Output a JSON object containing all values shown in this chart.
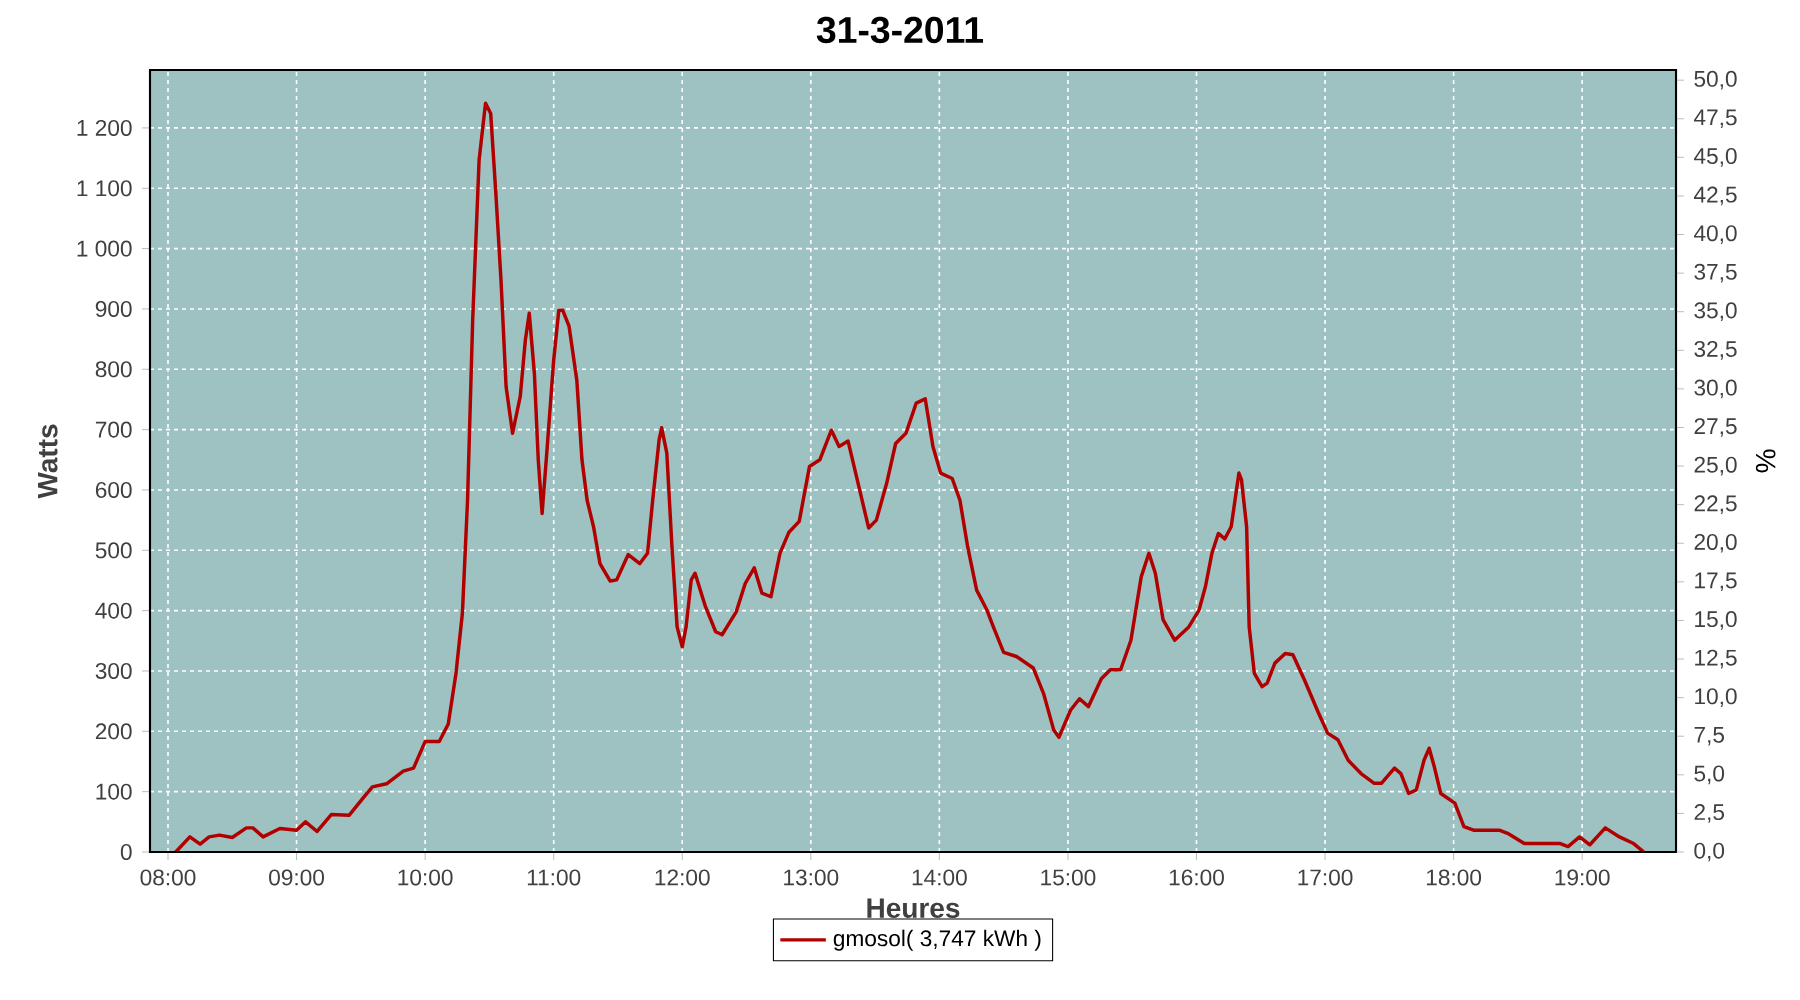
{
  "chart_data": {
    "type": "line",
    "title": "31-3-2011",
    "xlabel": "Heures",
    "ylabel": "Watts",
    "y2label": "%",
    "xlim": [
      7.86,
      19.73
    ],
    "xticks": [
      {
        "value": 8,
        "label": "08:00"
      },
      {
        "value": 9,
        "label": "09:00"
      },
      {
        "value": 10,
        "label": "10:00"
      },
      {
        "value": 11,
        "label": "11:00"
      },
      {
        "value": 12,
        "label": "12:00"
      },
      {
        "value": 13,
        "label": "13:00"
      },
      {
        "value": 14,
        "label": "14:00"
      },
      {
        "value": 15,
        "label": "15:00"
      },
      {
        "value": 16,
        "label": "16:00"
      },
      {
        "value": 17,
        "label": "17:00"
      },
      {
        "value": 18,
        "label": "18:00"
      },
      {
        "value": 19,
        "label": "19:00"
      }
    ],
    "ylim": [
      0,
      1296
    ],
    "yticks": [
      0,
      100,
      200,
      300,
      400,
      500,
      600,
      700,
      800,
      900,
      {
        "value": 1000,
        "label": "1 000"
      },
      {
        "value": 1100,
        "label": "1 100"
      },
      {
        "value": 1200,
        "label": "1 200"
      }
    ],
    "y2lim": [
      0,
      50.66
    ],
    "y2ticks": [
      {
        "value": 0,
        "label": "0,0"
      },
      {
        "value": 2.5,
        "label": "2,5"
      },
      {
        "value": 5,
        "label": "5,0"
      },
      {
        "value": 7.5,
        "label": "7,5"
      },
      {
        "value": 10,
        "label": "10,0"
      },
      {
        "value": 12.5,
        "label": "12,5"
      },
      {
        "value": 15,
        "label": "15,0"
      },
      {
        "value": 17.5,
        "label": "17,5"
      },
      {
        "value": 20,
        "label": "20,0"
      },
      {
        "value": 22.5,
        "label": "22,5"
      },
      {
        "value": 25,
        "label": "25,0"
      },
      {
        "value": 27.5,
        "label": "27,5"
      },
      {
        "value": 30,
        "label": "30,0"
      },
      {
        "value": 32.5,
        "label": "32,5"
      },
      {
        "value": 35,
        "label": "35,0"
      },
      {
        "value": 37.5,
        "label": "37,5"
      },
      {
        "value": 40,
        "label": "40,0"
      },
      {
        "value": 42.5,
        "label": "42,5"
      },
      {
        "value": 45,
        "label": "45,0"
      },
      {
        "value": 47.5,
        "label": "47,5"
      },
      {
        "value": 50,
        "label": "50,0"
      }
    ],
    "grid": true,
    "legend": "bottom",
    "marker": "none",
    "line_style": "solid",
    "x": [
      8.06,
      8.17,
      8.25,
      8.32,
      8.4,
      8.5,
      8.61,
      8.66,
      8.74,
      8.87,
      9.0,
      9.07,
      9.16,
      9.27,
      9.41,
      9.52,
      9.59,
      9.7,
      9.83,
      9.91,
      10.0,
      10.11,
      10.18,
      10.24,
      10.29,
      10.33,
      10.37,
      10.42,
      10.47,
      10.51,
      10.55,
      10.59,
      10.63,
      10.68,
      10.74,
      10.78,
      10.81,
      10.85,
      10.88,
      10.91,
      10.95,
      11.0,
      11.04,
      11.07,
      11.12,
      11.18,
      11.22,
      11.26,
      11.31,
      11.36,
      11.44,
      11.49,
      11.58,
      11.67,
      11.73,
      11.77,
      11.82,
      11.84,
      11.88,
      11.92,
      11.96,
      12.0,
      12.03,
      12.07,
      12.1,
      12.18,
      12.26,
      12.31,
      12.42,
      12.49,
      12.56,
      12.62,
      12.69,
      12.76,
      12.83,
      12.91,
      12.99,
      13.07,
      13.16,
      13.22,
      13.29,
      13.38,
      13.45,
      13.51,
      13.59,
      13.66,
      13.74,
      13.82,
      13.89,
      13.95,
      14.01,
      14.1,
      14.16,
      14.22,
      14.29,
      14.37,
      14.42,
      14.5,
      14.6,
      14.73,
      14.81,
      14.89,
      14.93,
      15.02,
      15.09,
      15.16,
      15.26,
      15.33,
      15.41,
      15.49,
      15.57,
      15.63,
      15.68,
      15.74,
      15.83,
      15.94,
      16.02,
      16.07,
      16.12,
      16.17,
      16.22,
      16.27,
      16.33,
      16.35,
      16.39,
      16.41,
      16.45,
      16.51,
      16.55,
      16.61,
      16.69,
      16.75,
      16.84,
      16.95,
      17.02,
      17.1,
      17.18,
      17.28,
      17.38,
      17.44,
      17.54,
      17.59,
      17.65,
      17.71,
      17.77,
      17.81,
      17.85,
      17.9,
      18.01,
      18.08,
      18.16,
      18.36,
      18.42,
      18.55,
      18.83,
      18.89,
      18.98,
      19.06,
      19.18,
      19.29,
      19.4,
      19.48
    ],
    "series": [
      {
        "name": "gmosol( 3,747 kWh )",
        "color": "#b00000",
        "values": [
          0,
          25,
          13,
          25,
          28,
          24,
          40,
          40,
          25,
          39,
          36,
          50,
          34,
          62,
          61,
          90,
          108,
          113,
          134,
          139,
          183,
          183,
          212,
          296,
          396,
          583,
          882,
          1147,
          1241,
          1224,
          1092,
          948,
          771,
          694,
          755,
          849,
          893,
          793,
          650,
          561,
          672,
          815,
          898,
          898,
          871,
          782,
          650,
          583,
          539,
          478,
          449,
          451,
          493,
          478,
          495,
          583,
          683,
          703,
          661,
          506,
          373,
          340,
          373,
          451,
          462,
          407,
          365,
          360,
          398,
          445,
          471,
          429,
          423,
          495,
          530,
          548,
          639,
          650,
          699,
          672,
          681,
          600,
          537,
          550,
          611,
          677,
          694,
          744,
          751,
          672,
          628,
          619,
          583,
          506,
          434,
          401,
          373,
          331,
          324,
          305,
          263,
          202,
          190,
          235,
          254,
          241,
          287,
          302,
          302,
          351,
          456,
          495,
          462,
          385,
          351,
          373,
          401,
          440,
          495,
          528,
          519,
          539,
          628,
          617,
          539,
          373,
          296,
          274,
          280,
          313,
          329,
          327,
          285,
          230,
          197,
          186,
          152,
          130,
          114,
          114,
          139,
          130,
          97,
          103,
          152,
          172,
          141,
          97,
          81,
          42,
          36,
          36,
          31,
          14,
          14,
          9,
          25,
          12,
          40,
          25,
          14,
          0
        ]
      }
    ]
  }
}
